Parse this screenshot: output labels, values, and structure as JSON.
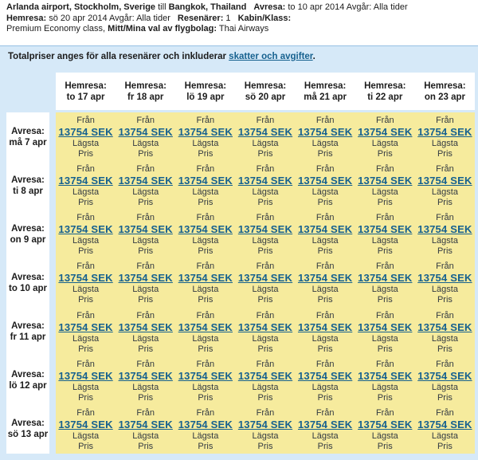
{
  "summary": {
    "origin": "Arlanda airport, Stockholm, Sverige",
    "till": " till ",
    "destination": "Bangkok, Thailand",
    "depart_label": "Avresa:",
    "depart_value": " to 10 apr 2014 Avgår: Alla tider",
    "return_label": "Hemresa:",
    "return_value": " sö 20 apr 2014 Avgår: Alla tider",
    "travelers_label": "Resenärer:",
    "travelers_value": " 1",
    "cabin_label": "Kabin/Klass:",
    "cabin_value": "Premium Economy class, ",
    "airline_label": "Mitt/Mina val av flygbolag:",
    "airline_value": " Thai Airways"
  },
  "notice": {
    "text_before": "Totalpriser anges för alla resenärer och inkluderar ",
    "link_text": "skatter och avgifter",
    "text_after": "."
  },
  "matrix": {
    "col_header_label": "Hemresa:",
    "row_header_label": "Avresa:",
    "columns": [
      "to 17 apr",
      "fr 18 apr",
      "lö 19 apr",
      "sö 20 apr",
      "må 21 apr",
      "ti 22 apr",
      "on 23 apr"
    ],
    "rows": [
      "må 7 apr",
      "ti 8 apr",
      "on 9 apr",
      "to 10 apr",
      "fr 11 apr",
      "lö 12 apr",
      "sö 13 apr"
    ],
    "cell": {
      "from_label": "Från",
      "price": "13754 SEK",
      "lowest_line1": "Lägsta",
      "lowest_line2": "Pris"
    }
  },
  "colors": {
    "panel_blue": "#d6e9f8",
    "panel_border": "#97c0e4",
    "cell_yellow": "#f6eb9d",
    "link_blue": "#16618f"
  }
}
